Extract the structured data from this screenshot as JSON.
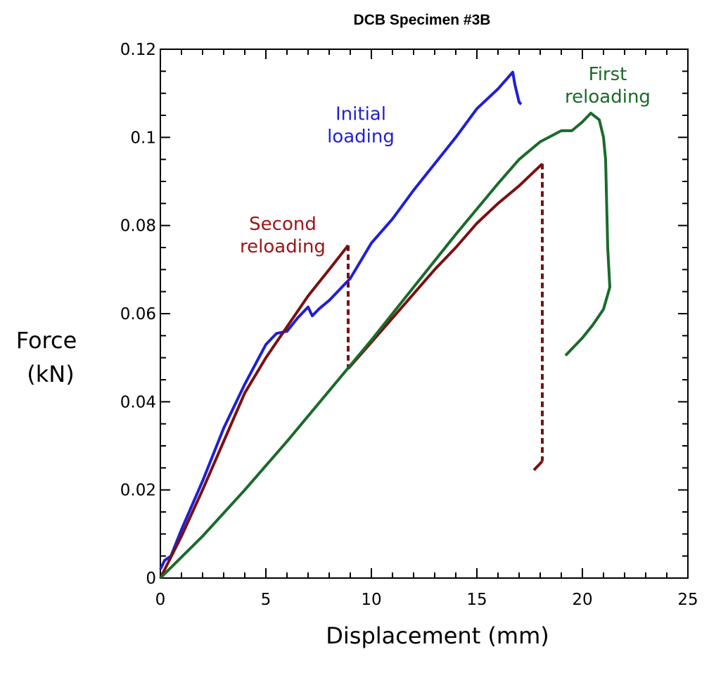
{
  "chart_data": {
    "type": "line",
    "title": "DCB Specimen #3B",
    "xlabel": "Displacement  (mm)",
    "ylabel_line1": "Force",
    "ylabel_line2": "(kN)",
    "xlim": [
      0,
      25
    ],
    "ylim": [
      0,
      0.12
    ],
    "xticks": [
      0,
      5,
      10,
      15,
      20,
      25
    ],
    "yticks": [
      0,
      0.02,
      0.04,
      0.06,
      0.08,
      0.1,
      0.12
    ],
    "xtick_labels": [
      "0",
      "5",
      "10",
      "15",
      "20",
      "25"
    ],
    "ytick_labels": [
      "0",
      "0.02",
      "0.04",
      "0.06",
      "0.08",
      "0.1",
      "0.12"
    ],
    "grid": false,
    "legend": "none",
    "annotations": [
      {
        "lines": [
          "Initial",
          "loading"
        ],
        "color": "#1f1fd6",
        "x": 9.5,
        "y": 0.104
      },
      {
        "lines": [
          "Second",
          "reloading"
        ],
        "color": "#a01515",
        "x": 5.8,
        "y": 0.079
      },
      {
        "lines": [
          "First",
          "reloading"
        ],
        "color": "#1a6a2a",
        "x": 21.2,
        "y": 0.113
      }
    ],
    "series": [
      {
        "color": "#1f1fd6",
        "points": [
          [
            0,
            0.002
          ],
          [
            0.2,
            0.004
          ],
          [
            0.5,
            0.005
          ],
          [
            1,
            0.011
          ],
          [
            2,
            0.022
          ],
          [
            3,
            0.034
          ],
          [
            4,
            0.044
          ],
          [
            5,
            0.053
          ],
          [
            5.5,
            0.0555
          ],
          [
            6,
            0.056
          ],
          [
            6.5,
            0.059
          ],
          [
            7,
            0.0615
          ],
          [
            7.2,
            0.0595
          ],
          [
            7.5,
            0.061
          ],
          [
            8,
            0.063
          ],
          [
            9,
            0.068
          ],
          [
            10,
            0.076
          ],
          [
            11,
            0.0815
          ],
          [
            12,
            0.088
          ],
          [
            13,
            0.094
          ],
          [
            14,
            0.1
          ],
          [
            15,
            0.1065
          ],
          [
            16,
            0.111
          ],
          [
            16.7,
            0.1148
          ],
          [
            16.8,
            0.112
          ],
          [
            17,
            0.108
          ],
          [
            17.1,
            0.1075
          ]
        ]
      },
      {
        "color": "#7a1010",
        "points": [
          [
            0,
            0
          ],
          [
            1,
            0.0095
          ],
          [
            2,
            0.02
          ],
          [
            3,
            0.031
          ],
          [
            4,
            0.042
          ],
          [
            5,
            0.05
          ],
          [
            6,
            0.057
          ],
          [
            7,
            0.064
          ],
          [
            8,
            0.07
          ],
          [
            8.9,
            0.0755
          ]
        ]
      },
      {
        "color": "#7a1010",
        "points": [
          [
            8.9,
            0.0755
          ],
          [
            8.9,
            0.0475
          ]
        ],
        "dashed": true
      },
      {
        "color": "#7a1010",
        "points": [
          [
            8.9,
            0.0475
          ],
          [
            10,
            0.0535
          ],
          [
            11,
            0.059
          ],
          [
            12,
            0.0645
          ],
          [
            13,
            0.07
          ],
          [
            14,
            0.075
          ],
          [
            15,
            0.0805
          ],
          [
            16,
            0.085
          ],
          [
            17,
            0.089
          ],
          [
            18.1,
            0.094
          ]
        ]
      },
      {
        "color": "#7a1010",
        "points": [
          [
            18.1,
            0.094
          ],
          [
            18.1,
            0.0265
          ]
        ],
        "dashed": true
      },
      {
        "color": "#7a1010",
        "points": [
          [
            17.7,
            0.0245
          ],
          [
            18.1,
            0.0265
          ]
        ]
      },
      {
        "color": "#1a6a2a",
        "points": [
          [
            0,
            0
          ],
          [
            2,
            0.0095
          ],
          [
            4,
            0.02
          ],
          [
            6,
            0.031
          ],
          [
            8,
            0.0425
          ],
          [
            10,
            0.054
          ],
          [
            12,
            0.066
          ],
          [
            14,
            0.078
          ],
          [
            16,
            0.0895
          ],
          [
            17,
            0.095
          ],
          [
            18,
            0.099
          ],
          [
            19,
            0.1015
          ],
          [
            19.5,
            0.1015
          ],
          [
            20,
            0.1035
          ],
          [
            20.4,
            0.1055
          ],
          [
            20.8,
            0.104
          ],
          [
            21,
            0.1
          ],
          [
            21.1,
            0.095
          ],
          [
            21.15,
            0.085
          ],
          [
            21.2,
            0.075
          ],
          [
            21.3,
            0.066
          ],
          [
            21,
            0.061
          ],
          [
            20.5,
            0.0575
          ],
          [
            20,
            0.0545
          ],
          [
            19.2,
            0.0505
          ]
        ]
      }
    ]
  }
}
